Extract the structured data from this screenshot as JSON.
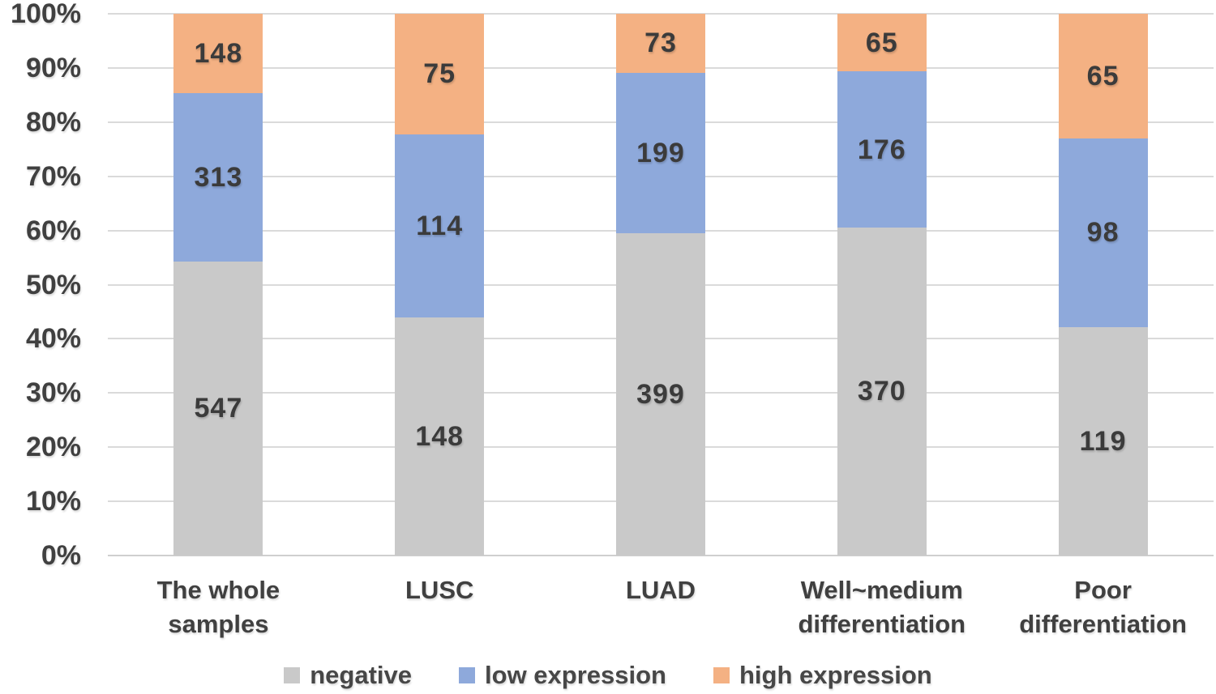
{
  "chart_data": {
    "type": "bar",
    "subtype": "stacked-100-percent",
    "orientation": "vertical",
    "grid": true,
    "legend_position": "bottom",
    "categories": [
      "The whole samples",
      "LUSC",
      "LUAD",
      "Well~medium differentiation",
      "Poor differentiation"
    ],
    "category_display": [
      "The whole\nsamples",
      "LUSC",
      "LUAD",
      "Well~medium\ndifferentiation",
      "Poor\ndifferentiation"
    ],
    "series": [
      {
        "name": "negative",
        "color": "#C9C9C9",
        "values": [
          547,
          148,
          399,
          370,
          119
        ]
      },
      {
        "name": "low expression",
        "color": "#8EA9DB",
        "values": [
          313,
          114,
          199,
          176,
          98
        ]
      },
      {
        "name": "high expression",
        "color": "#F4B183",
        "values": [
          148,
          75,
          73,
          65,
          65
        ]
      }
    ],
    "y_axis": {
      "min": 0,
      "max": 100,
      "unit": "%",
      "tick_step": 10,
      "tick_labels": [
        "0%",
        "10%",
        "20%",
        "30%",
        "40%",
        "50%",
        "60%",
        "70%",
        "80%",
        "90%",
        "100%"
      ]
    },
    "style": {
      "gridline_color": "#DADADA",
      "axis_line_color": "#CFCFCF",
      "tick_label_color": "#404040",
      "category_label_color": "#404040",
      "value_label_color": "#3B3B3B",
      "legend_label_color": "#474747",
      "background_color": "#FFFFFF"
    }
  }
}
